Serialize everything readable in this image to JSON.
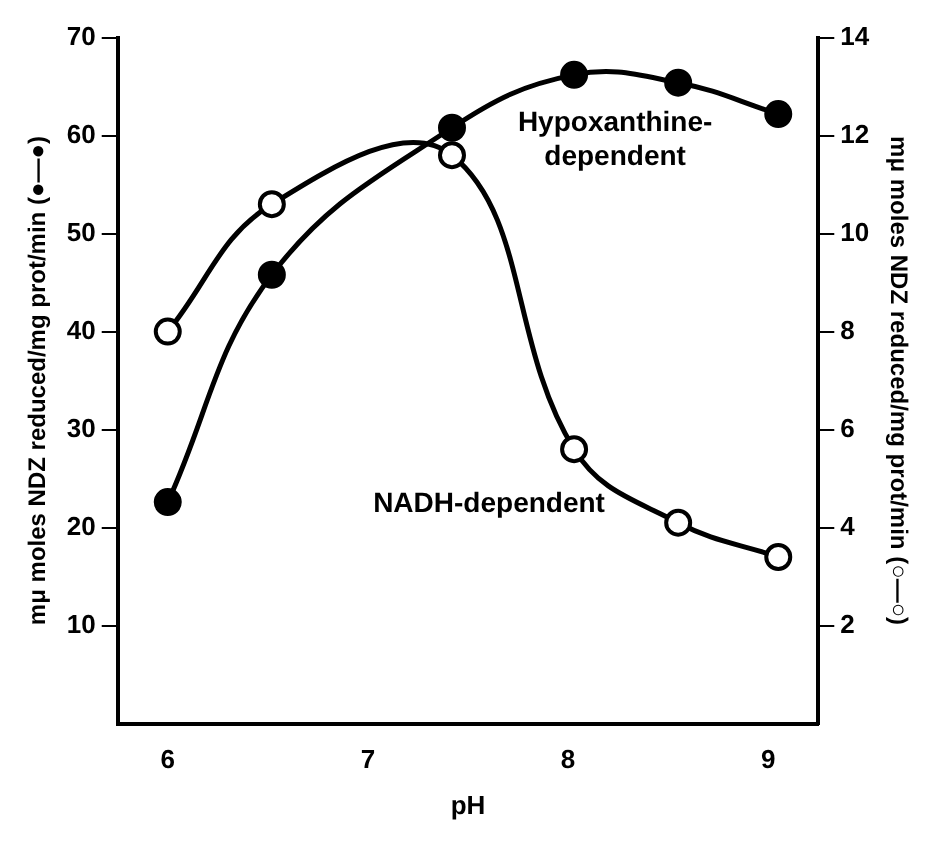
{
  "chart_data": {
    "type": "line",
    "xlabel": "pH",
    "ylabel": "mμ moles NDZ reduced/mg prot/min (●—●)",
    "y2label": "mμ moles NDZ reduced/mg prot/min (○—○)",
    "series": [
      {
        "color": "#000000",
        "x": [
          6,
          6.52,
          7.42,
          8.03,
          8.55,
          9.05
        ],
        "values": [
          22.6,
          45.8,
          60.8,
          66.2,
          65.4,
          62.2
        ]
      },
      {
        "color": "#000000",
        "axis": "y2",
        "x": [
          6,
          6.52,
          7.42,
          8.03,
          8.55,
          9.05
        ],
        "values": [
          8,
          10.6,
          11.6,
          5.6,
          4.1,
          3.4
        ]
      }
    ],
    "xlim": [
      5.75,
      9.25
    ],
    "xticks": [
      6,
      7,
      8,
      9
    ],
    "ylim": [
      0,
      70
    ],
    "yticks": [
      10,
      20,
      30,
      40,
      50,
      60,
      70
    ],
    "y2lim": [
      0,
      14
    ],
    "y2ticks": [
      2,
      4,
      6,
      8,
      10,
      12,
      14
    ],
    "marker": "circle",
    "grid": false,
    "legend": false,
    "annotations": [
      "Hypoxanthine-dependent",
      "NADH-dependent"
    ]
  }
}
